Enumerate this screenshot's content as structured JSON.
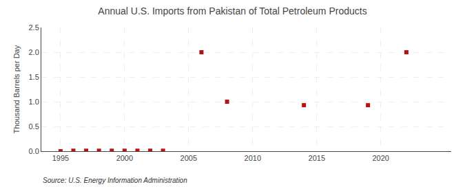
{
  "chart_data": {
    "type": "scatter",
    "title": "Annual U.S. Imports from Pakistan of Total Petroleum Products",
    "ylabel": "Thousand Barrels per Day",
    "annotations": [
      "Source: U.S. Energy Information Administration"
    ],
    "x": [
      1995,
      1996,
      1997,
      1998,
      1999,
      2000,
      2001,
      2002,
      2003,
      2006,
      2008,
      2014,
      2019,
      2022
    ],
    "values": [
      0.0,
      0.01,
      0.01,
      0.01,
      0.01,
      0.01,
      0.01,
      0.01,
      0.01,
      2.0,
      1.0,
      0.93,
      0.93,
      2.0
    ],
    "color": "#bb1111",
    "marker": "square",
    "xlim": [
      1993.5,
      2025.5
    ],
    "xticks": [
      1995,
      2000,
      2005,
      2010,
      2015,
      2020
    ],
    "ylim": [
      0.0,
      2.5
    ],
    "yticks": [
      {
        "value": 0.0,
        "label": "0.0"
      },
      0.5,
      {
        "value": 1.0,
        "label": "1.0"
      },
      1.5,
      {
        "value": 2.0,
        "label": "2.0"
      },
      2.5
    ],
    "grid": true
  }
}
